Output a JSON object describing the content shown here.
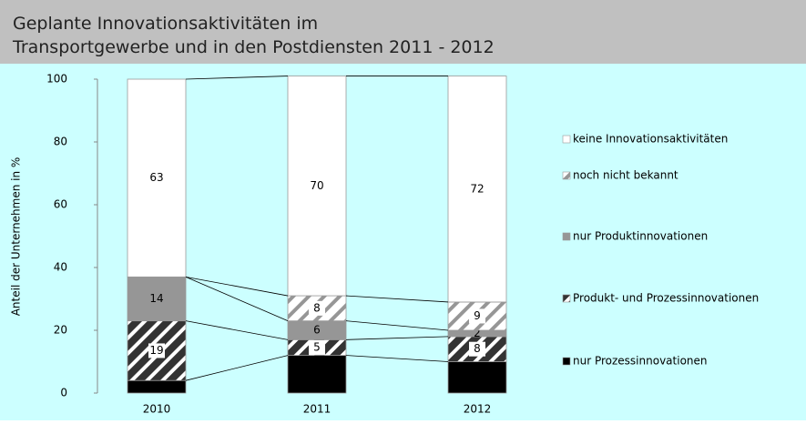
{
  "chart_data": {
    "type": "stacked_bar",
    "title": [
      "Geplante Innovationsaktivitäten im",
      "Transportgewerbe und in den Postdiensten 2011 - 2012"
    ],
    "y_label": "Anteil der Unternehmen in %",
    "categories": [
      "2010",
      "2011",
      "2012"
    ],
    "series": [
      {
        "name": "nur Prozessinnovationen",
        "color": "#000000",
        "values": [
          4,
          12,
          10
        ]
      },
      {
        "name": "Produkt- und Prozessinnovationen",
        "color": "#333333",
        "hatch": true,
        "values": [
          19,
          5,
          8
        ]
      },
      {
        "name": "nur Produktinnovationen",
        "color": "#969696",
        "values": [
          14,
          6,
          2
        ]
      },
      {
        "name": "noch nicht bekannt",
        "color": "#ffffff",
        "hatch": true,
        "values": [
          null,
          8,
          9
        ]
      },
      {
        "name": "keine Innovationsaktivitäten",
        "color": "#ffffff",
        "values": [
          63,
          70,
          72
        ]
      }
    ],
    "ylim": [
      0,
      100
    ],
    "yticks": [
      0,
      20,
      40,
      60,
      80,
      100
    ],
    "legend": "right"
  }
}
